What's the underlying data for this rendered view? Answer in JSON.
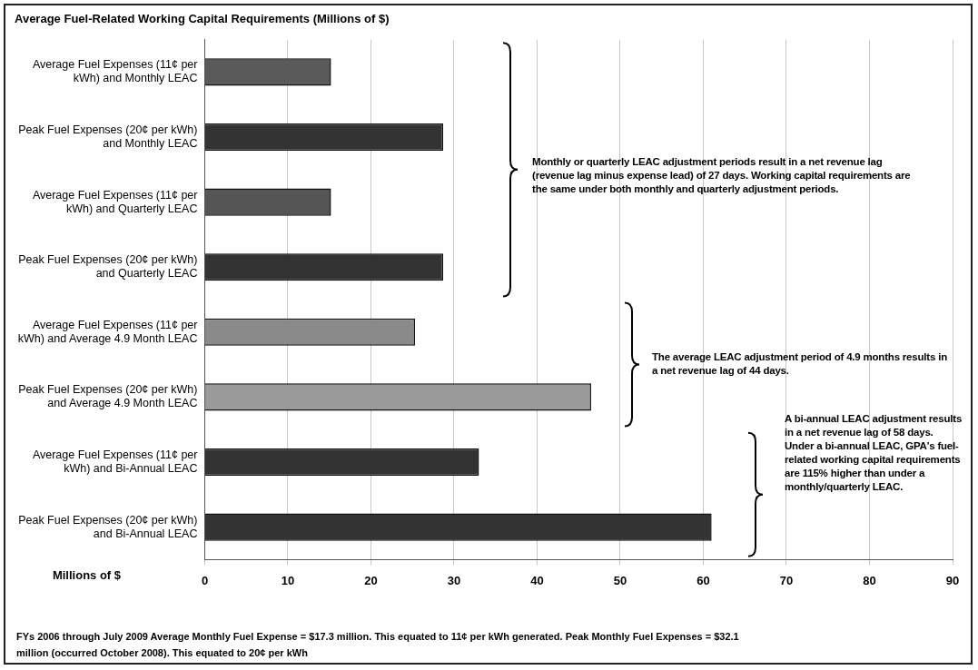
{
  "chart_data": {
    "type": "bar",
    "orientation": "horizontal",
    "title": "Average Fuel-Related Working Capital Requirements (Millions of $)",
    "xlabel": "Millions of $",
    "categories": [
      "Average Fuel Expenses (11¢ per kWh) and Monthly LEAC",
      "Peak Fuel Expenses (20¢ per kWh) and Monthly LEAC",
      "Average Fuel Expenses (11¢ per kWh) and Quarterly LEAC",
      "Peak Fuel Expenses (20¢ per kWh) and Quarterly LEAC",
      "Average Fuel Expenses (11¢ per kWh) and Average 4.9 Month LEAC",
      "Peak Fuel Expenses (20¢ per kWh) and Average 4.9 Month LEAC",
      "Average Fuel Expenses (11¢ per kWh) and Bi-Annual LEAC",
      "Peak Fuel Expenses (20¢ per kWh) and Bi-Annual LEAC"
    ],
    "values": [
      15.2,
      28.7,
      15.2,
      28.7,
      25.3,
      46.5,
      33,
      61
    ],
    "colors": [
      "#5a5a5a",
      "#333333",
      "#555555",
      "#333333",
      "#8a8a8a",
      "#9a9a9a",
      "#333333",
      "#333333"
    ],
    "xlim": [
      0,
      90
    ],
    "xticks": [
      0,
      10,
      20,
      30,
      40,
      50,
      60,
      70,
      80,
      90
    ],
    "grid": "x",
    "annotations": [
      "Monthly or quarterly LEAC adjustment periods result in a net revenue lag (revenue lag minus expense lead) of 27 days. Working capital requirements are the same under both monthly and quarterly adjustment periods.",
      "The average LEAC adjustment period of  4.9 months results in a net revenue lag of 44 days.",
      "A bi-annual LEAC adjustment results in a net revenue lag of 58 days.  Under a bi-annual LEAC, GPA's fuel-related working capital requirements are 115% higher than under a monthly/quarterly LEAC.",
      "FYs 2006 through July 2009 Average Monthly Fuel Expense = $17.3 million. This equated to 11¢ per kWh generated.  Peak Monthly Fuel Expenses = $32.1 million (occurred October 2008).  This equated to 20¢ per kWh"
    ]
  }
}
